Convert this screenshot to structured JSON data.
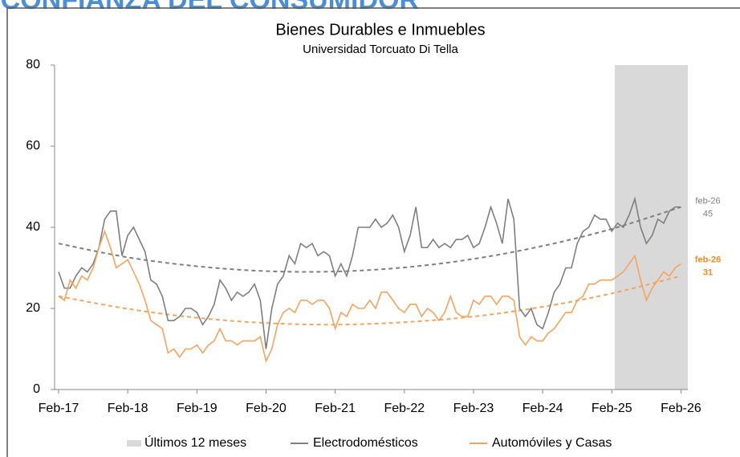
{
  "header": "CONFIANZA DEL CONSUMIDOR",
  "chart_data": {
    "type": "line",
    "title": "Bienes Durables e Inmuebles",
    "subtitle": "Universidad Torcuato Di Tella",
    "categories": [
      "Feb-17",
      null,
      null,
      null,
      null,
      null,
      null,
      null,
      null,
      null,
      null,
      null,
      "Feb-18",
      null,
      null,
      null,
      null,
      null,
      null,
      null,
      null,
      null,
      null,
      null,
      "Feb-19",
      null,
      null,
      null,
      null,
      null,
      null,
      null,
      null,
      null,
      null,
      null,
      "Feb-20",
      null,
      null,
      null,
      null,
      null,
      null,
      null,
      null,
      null,
      null,
      null,
      "Feb-21",
      null,
      null,
      null,
      null,
      null,
      null,
      null,
      null,
      null,
      null,
      null,
      "Feb-22",
      null,
      null,
      null,
      null,
      null,
      null,
      null,
      null,
      null,
      null,
      null,
      "Feb-23",
      null,
      null,
      null,
      null,
      null,
      null,
      null,
      null,
      null,
      null,
      null,
      "Feb-24",
      null,
      null,
      null,
      null,
      null,
      null,
      null,
      null,
      null,
      null,
      null,
      "Feb-25",
      null,
      null,
      null,
      null,
      null,
      null,
      null,
      null,
      null,
      null,
      null,
      "Feb-26"
    ],
    "series": [
      {
        "name": "Electrodomésticos",
        "color": "#7f7f7f",
        "end_label_date": "feb-26",
        "end_label_value": 45,
        "values": [
          29,
          25,
          25,
          28,
          30,
          29,
          31,
          35,
          42,
          44,
          44,
          33,
          38,
          40,
          37,
          34,
          27,
          26,
          23,
          17,
          17,
          18,
          20,
          20,
          19,
          16,
          18,
          21,
          27,
          25,
          22,
          24,
          23,
          24,
          26,
          22,
          10,
          20,
          26,
          28,
          33,
          31,
          36,
          35,
          36,
          33,
          34,
          33,
          28,
          31,
          28,
          33,
          40,
          40,
          40,
          42,
          40,
          41,
          43,
          40,
          34,
          38,
          45,
          35,
          35,
          37,
          35,
          36,
          35,
          37,
          37,
          38,
          35,
          36,
          40,
          45,
          41,
          36,
          47,
          42,
          20,
          18,
          20,
          16,
          15,
          19,
          24,
          26,
          30,
          30,
          36,
          39,
          40,
          43,
          42,
          42,
          39,
          41,
          40,
          43,
          47,
          40,
          36,
          38,
          42,
          41,
          44,
          45,
          45
        ]
      },
      {
        "name": "Automóviles y Casas",
        "color": "#f4a460",
        "end_label_date": "feb-26",
        "end_label_value": 31,
        "values": [
          23,
          22,
          27,
          25,
          28,
          27,
          30,
          35,
          39,
          35,
          30,
          31,
          32,
          29,
          26,
          22,
          17,
          16,
          15,
          9,
          10,
          8,
          10,
          10,
          11,
          9,
          11,
          12,
          15,
          12,
          12,
          11,
          12,
          12,
          12,
          13,
          7,
          10,
          16,
          19,
          20,
          19,
          22,
          22,
          21,
          22,
          22,
          20,
          15,
          19,
          18,
          21,
          20,
          20,
          22,
          20,
          24,
          24,
          22,
          20,
          19,
          21,
          21,
          18,
          20,
          19,
          17,
          19,
          23,
          19,
          18,
          18,
          22,
          21,
          23,
          23,
          21,
          23,
          23,
          22,
          13,
          11,
          13,
          12,
          12,
          14,
          15,
          17,
          19,
          19,
          22,
          23,
          26,
          26,
          27,
          27,
          27,
          28,
          29,
          31,
          33,
          27,
          22,
          25,
          27,
          29,
          28,
          30,
          31
        ]
      }
    ],
    "trends": [
      {
        "color": "#7f7f7f",
        "categories": [
          "Feb-17",
          "Feb-18",
          "Feb-19",
          "Feb-20",
          "Feb-21",
          "Feb-22",
          "Feb-23",
          "Feb-24",
          "Feb-25",
          "Feb-26"
        ],
        "values": [
          36.0,
          32.6,
          30.4,
          29.2,
          29.1,
          30.1,
          32.2,
          35.4,
          39.6,
          45.0
        ]
      },
      {
        "color": "#f4a460",
        "categories": [
          "Feb-17",
          "Feb-18",
          "Feb-19",
          "Feb-20",
          "Feb-21",
          "Feb-22",
          "Feb-23",
          "Feb-24",
          "Feb-25",
          "Feb-26"
        ],
        "values": [
          23.0,
          19.9,
          17.7,
          16.4,
          16.0,
          16.6,
          18.0,
          20.4,
          23.7,
          28.0
        ]
      }
    ],
    "shade": {
      "name": "Últimos 12 meses",
      "from": "Feb-25",
      "color": "#d9d9d9"
    },
    "ylim": [
      0,
      80
    ],
    "yticks": [
      0,
      20,
      40,
      60,
      80
    ]
  }
}
